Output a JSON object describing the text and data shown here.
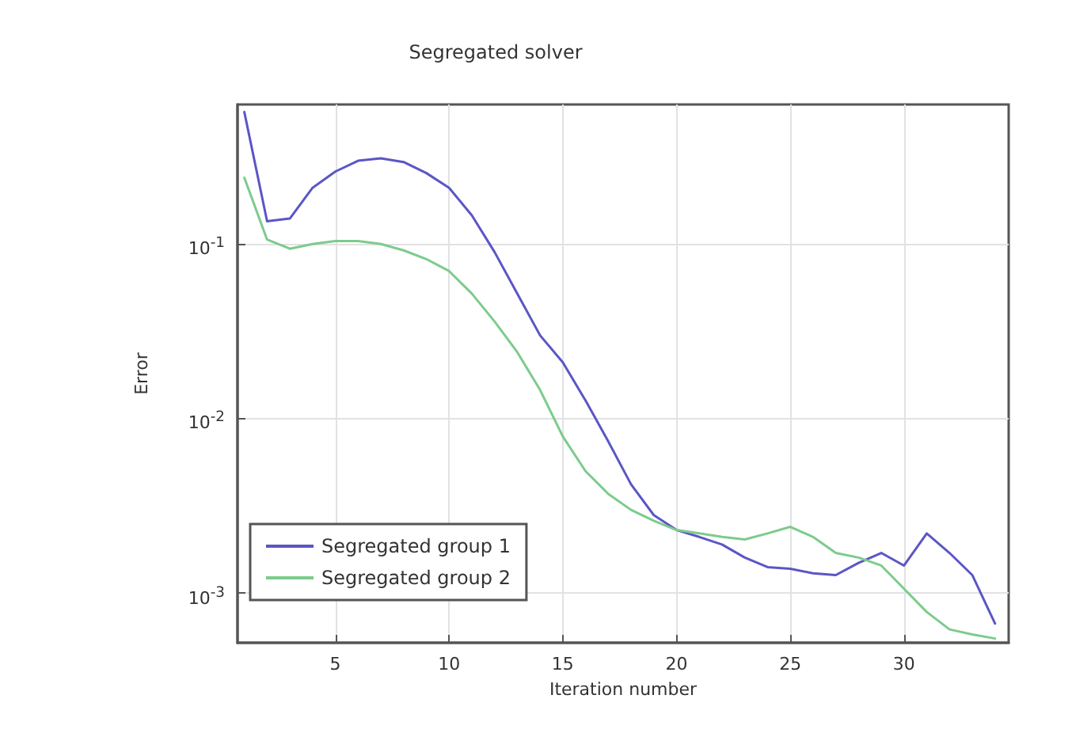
{
  "chart_data": {
    "type": "line",
    "title": "Segregated solver",
    "xlabel": "Iteration number",
    "ylabel": "Error",
    "x": [
      1,
      2,
      3,
      4,
      5,
      6,
      7,
      8,
      9,
      10,
      11,
      12,
      13,
      14,
      15,
      16,
      17,
      18,
      19,
      20,
      21,
      22,
      23,
      24,
      25,
      26,
      27,
      28,
      29,
      30,
      31,
      32,
      33,
      34
    ],
    "series": [
      {
        "name": "Segregated group 1",
        "color": "#5b56c6",
        "values": [
          0.57,
          0.135,
          0.14,
          0.21,
          0.26,
          0.3,
          0.31,
          0.295,
          0.255,
          0.21,
          0.146,
          0.09,
          0.052,
          0.03,
          0.021,
          0.0127,
          0.0074,
          0.0042,
          0.0028,
          0.0023,
          0.0021,
          0.0019,
          0.0016,
          0.00141,
          0.00138,
          0.0013,
          0.00127,
          0.00149,
          0.0017,
          0.00144,
          0.0022,
          0.0017,
          0.00127,
          0.00067
        ]
      },
      {
        "name": "Segregated group 2",
        "color": "#7dcb8c",
        "values": [
          0.24,
          0.106,
          0.094,
          0.1,
          0.104,
          0.104,
          0.1,
          0.092,
          0.082,
          0.07,
          0.052,
          0.036,
          0.024,
          0.0146,
          0.0079,
          0.005,
          0.0037,
          0.003,
          0.0026,
          0.0023,
          0.0022,
          0.0021,
          0.00203,
          0.0022,
          0.0024,
          0.0021,
          0.0017,
          0.0016,
          0.00144,
          0.00106,
          0.00078,
          0.00062,
          0.00058,
          0.00055
        ]
      }
    ],
    "xlim": [
      0.7,
      34.6
    ],
    "xticks": [
      5,
      10,
      15,
      20,
      25,
      30
    ],
    "ylim": [
      0.00052,
      0.63
    ],
    "yticks": [
      {
        "value": 0.1,
        "label": "10$^{-1}$"
      },
      {
        "value": 0.01,
        "label": "10$^{-2}$"
      },
      {
        "value": 0.001,
        "label": "10$^{-3}$"
      }
    ],
    "log": true,
    "grid": true,
    "legend": "bottom left",
    "marker": "none",
    "line_style": "solid"
  }
}
